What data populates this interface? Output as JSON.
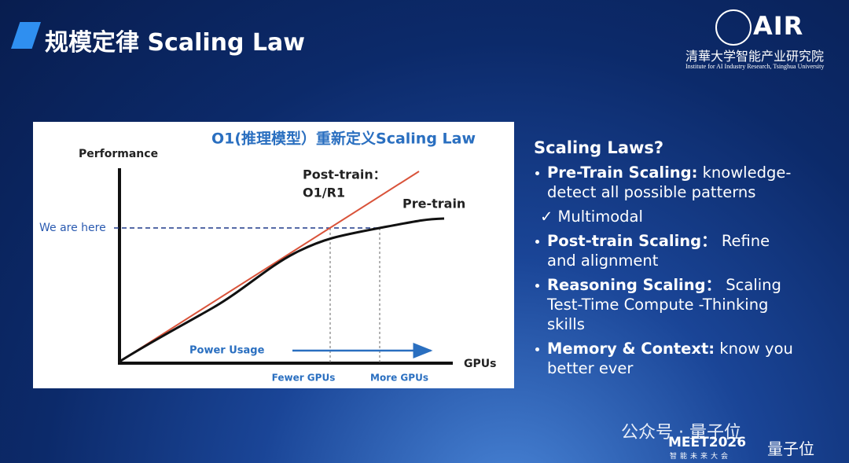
{
  "header": {
    "title": "规模定律 Scaling Law"
  },
  "logo": {
    "mark": "AIR",
    "org": "清華大学智能产业研究院",
    "org_en": "Institute for AI Industry Research, Tsinghua University"
  },
  "figure": {
    "title": "O1(推理模型）重新定义Scaling Law",
    "y_label": "Performance",
    "x_label": "GPUs",
    "marker": "We are here",
    "post_train": [
      "Post-train：",
      "O1/R1"
    ],
    "pre_train": "Pre-train",
    "arrow_label": "Power Usage",
    "fewer": "Fewer GPUs",
    "more": "More GPUs"
  },
  "notes": {
    "heading": "Scaling Laws?",
    "items": [
      {
        "bold": "Pre-Train Scaling:",
        "text": "knowledge-detect all possible patterns",
        "sub": "✓ Multimodal"
      },
      {
        "bold": "Post-train Scaling：",
        "text": "Refine and alignment"
      },
      {
        "bold": "Reasoning Scaling：",
        "text": "Scaling Test-Time Compute -Thinking skills"
      },
      {
        "bold": "Memory & Context:",
        "text": "know you better ever"
      }
    ]
  },
  "footer": {
    "watermark": "公众号 · 量子位",
    "event": "MEET2026",
    "event_sub": "智能未来大会",
    "brand": "量子位"
  }
}
